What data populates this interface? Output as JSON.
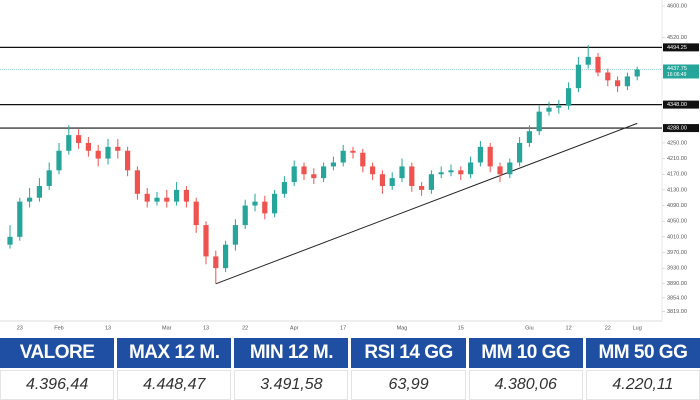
{
  "chart_data": {
    "type": "candlestick",
    "categories": [
      null,
      "23",
      null,
      null,
      null,
      "Feb",
      null,
      null,
      null,
      null,
      "13",
      null,
      null,
      null,
      null,
      null,
      "Mar",
      null,
      null,
      null,
      "13",
      null,
      null,
      null,
      "22",
      null,
      null,
      null,
      null,
      "Apr",
      null,
      null,
      null,
      null,
      "17",
      null,
      null,
      null,
      null,
      null,
      "Mag",
      null,
      null,
      null,
      null,
      null,
      "15",
      null,
      null,
      null,
      null,
      null,
      null,
      "Giu",
      null,
      null,
      null,
      "12",
      null,
      null,
      null,
      "22",
      null,
      null,
      "Lug"
    ],
    "open": [
      3990,
      4010,
      4100,
      4110,
      4140,
      4180,
      4230,
      4270,
      4250,
      4230,
      4210,
      4240,
      4230,
      4180,
      4120,
      4100,
      4110,
      4100,
      4130,
      4100,
      4040,
      3960,
      3930,
      3990,
      4040,
      4090,
      4100,
      4070,
      4120,
      4150,
      4190,
      4170,
      4160,
      4190,
      4200,
      4230,
      4225,
      4190,
      4170,
      4140,
      4160,
      4190,
      4140,
      4130,
      4170,
      4175,
      4180,
      4170,
      4200,
      4240,
      4190,
      4170,
      4200,
      4250,
      4280,
      4330,
      4340,
      4345,
      4390,
      4450,
      4470,
      4430,
      4410,
      4395,
      4420
    ],
    "high": [
      4040,
      4110,
      4135,
      4160,
      4200,
      4250,
      4295,
      4285,
      4265,
      4245,
      4260,
      4260,
      4240,
      4190,
      4135,
      4125,
      4130,
      4150,
      4140,
      4110,
      4050,
      3975,
      4000,
      4055,
      4105,
      4120,
      4115,
      4130,
      4165,
      4205,
      4200,
      4185,
      4200,
      4215,
      4245,
      4240,
      4235,
      4200,
      4180,
      4175,
      4210,
      4200,
      4150,
      4180,
      4190,
      4195,
      4190,
      4215,
      4255,
      4250,
      4200,
      4210,
      4265,
      4295,
      4345,
      4355,
      4360,
      4405,
      4470,
      4500,
      4480,
      4440,
      4420,
      4430,
      4445
    ],
    "low": [
      3980,
      4000,
      4085,
      4100,
      4130,
      4170,
      4220,
      4235,
      4215,
      4190,
      4195,
      4210,
      4165,
      4105,
      4085,
      4090,
      4085,
      4090,
      4085,
      4020,
      3940,
      3890,
      3920,
      3975,
      4030,
      4075,
      4055,
      4060,
      4110,
      4140,
      4155,
      4145,
      4150,
      4180,
      4190,
      4210,
      4175,
      4155,
      4120,
      4130,
      4150,
      4125,
      4115,
      4120,
      4160,
      4165,
      4155,
      4160,
      4190,
      4175,
      4150,
      4160,
      4190,
      4240,
      4270,
      4320,
      4325,
      4335,
      4380,
      4440,
      4420,
      4395,
      4380,
      4385,
      4410
    ],
    "close": [
      4010,
      4100,
      4110,
      4140,
      4180,
      4230,
      4270,
      4250,
      4230,
      4210,
      4240,
      4230,
      4180,
      4120,
      4100,
      4110,
      4100,
      4130,
      4100,
      4040,
      3960,
      3930,
      3990,
      4040,
      4090,
      4100,
      4070,
      4120,
      4150,
      4190,
      4170,
      4160,
      4190,
      4200,
      4230,
      4225,
      4190,
      4170,
      4140,
      4160,
      4190,
      4140,
      4130,
      4170,
      4175,
      4180,
      4170,
      4200,
      4240,
      4190,
      4170,
      4200,
      4250,
      4280,
      4330,
      4340,
      4345,
      4390,
      4450,
      4470,
      4430,
      4410,
      4395,
      4420,
      4437.75
    ],
    "up_color": "#26a69a",
    "down_color": "#ef5350",
    "ylim": [
      3800,
      4600
    ],
    "yticks": [
      {
        "value": 4600,
        "label": "4600.00"
      },
      {
        "value": 4520,
        "label": "4520.00"
      },
      {
        "value": 4250,
        "label": "4250.00"
      },
      {
        "value": 4210,
        "label": "4210.00"
      },
      {
        "value": 4170,
        "label": "4170.00"
      },
      {
        "value": 4130,
        "label": "4130.00"
      },
      {
        "value": 4090,
        "label": "4090.00"
      },
      {
        "value": 4050,
        "label": "4050.00"
      },
      {
        "value": 4010,
        "label": "4010.00"
      },
      {
        "value": 3970,
        "label": "3970.00"
      },
      {
        "value": 3930,
        "label": "3930.00"
      },
      {
        "value": 3890,
        "label": "3890.00"
      },
      {
        "value": 3854,
        "label": "3854.00"
      },
      {
        "value": 3819,
        "label": "3819.00"
      }
    ],
    "levels": [
      {
        "value": 4494.25,
        "label": "4494.25"
      },
      {
        "value": 4348,
        "label": "4348.00"
      },
      {
        "value": 4288,
        "label": "4288.00"
      }
    ],
    "current": {
      "value": 4437.75,
      "label": "4437.75",
      "time": "16:06:49"
    },
    "trendline": {
      "start_index": 21,
      "start_value": 3890,
      "end_index": 64,
      "end_value": 4300
    }
  },
  "table": {
    "headers": [
      "VALORE",
      "MAX 12 M.",
      "MIN 12 M.",
      "RSI 14 GG",
      "MM 10 GG",
      "MM 50 GG"
    ],
    "values": [
      "4.396,44",
      "4.448,47",
      "3.491,58",
      "63,99",
      "4.380,06",
      "4.220,11"
    ]
  }
}
